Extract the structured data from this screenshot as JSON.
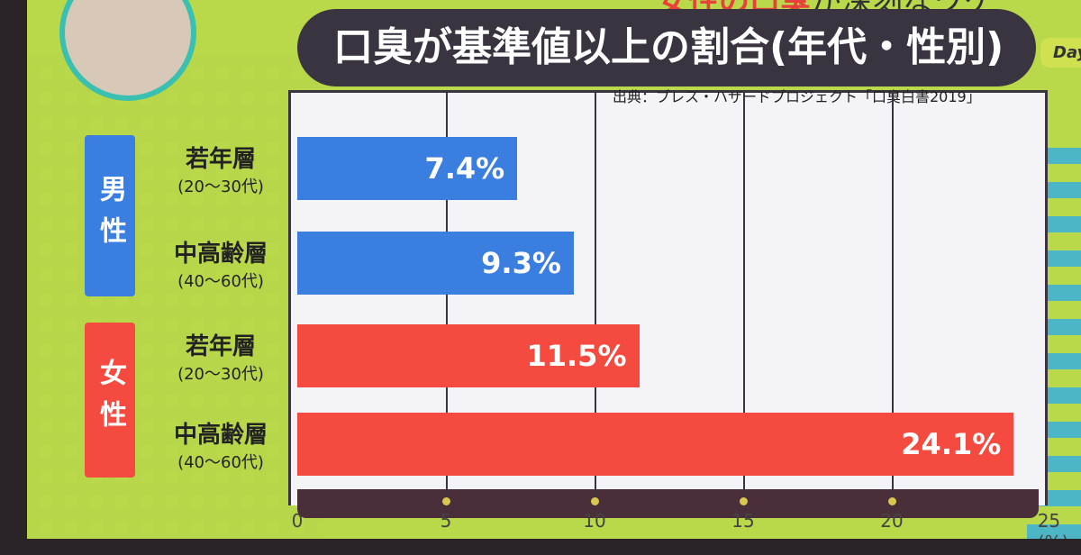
{
  "headline": {
    "part1": "女性の口臭",
    "part2": "が深刻なワケ"
  },
  "badge": "Day",
  "colors": {
    "male": "#3a7ee0",
    "female": "#f44a40",
    "title_bg": "#3a3440"
  },
  "chart_data": {
    "type": "bar",
    "orientation": "horizontal",
    "title": "口臭が基準値以上の割合(年代・性別)",
    "source": "出典：ブレス・ハザードプロジェクト「口臭白書2019」",
    "groups": [
      {
        "label": "男性",
        "categories": [
          0,
          1
        ]
      },
      {
        "label": "女性",
        "categories": [
          2,
          3
        ]
      }
    ],
    "categories": [
      {
        "label": "若年層",
        "sub": "(20〜30代)"
      },
      {
        "label": "中高齢層",
        "sub": "(40〜60代)"
      },
      {
        "label": "若年層",
        "sub": "(20〜30代)"
      },
      {
        "label": "中高齢層",
        "sub": "(40〜60代)"
      }
    ],
    "values": [
      7.4,
      9.3,
      11.5,
      24.1
    ],
    "value_labels": [
      "7.4%",
      "9.3%",
      "11.5%",
      "24.1%"
    ],
    "xlim": [
      0,
      25
    ],
    "xticks": [
      "0",
      "5",
      "10",
      "15",
      "20",
      "25"
    ],
    "xunit": "(%)",
    "grid": true
  }
}
